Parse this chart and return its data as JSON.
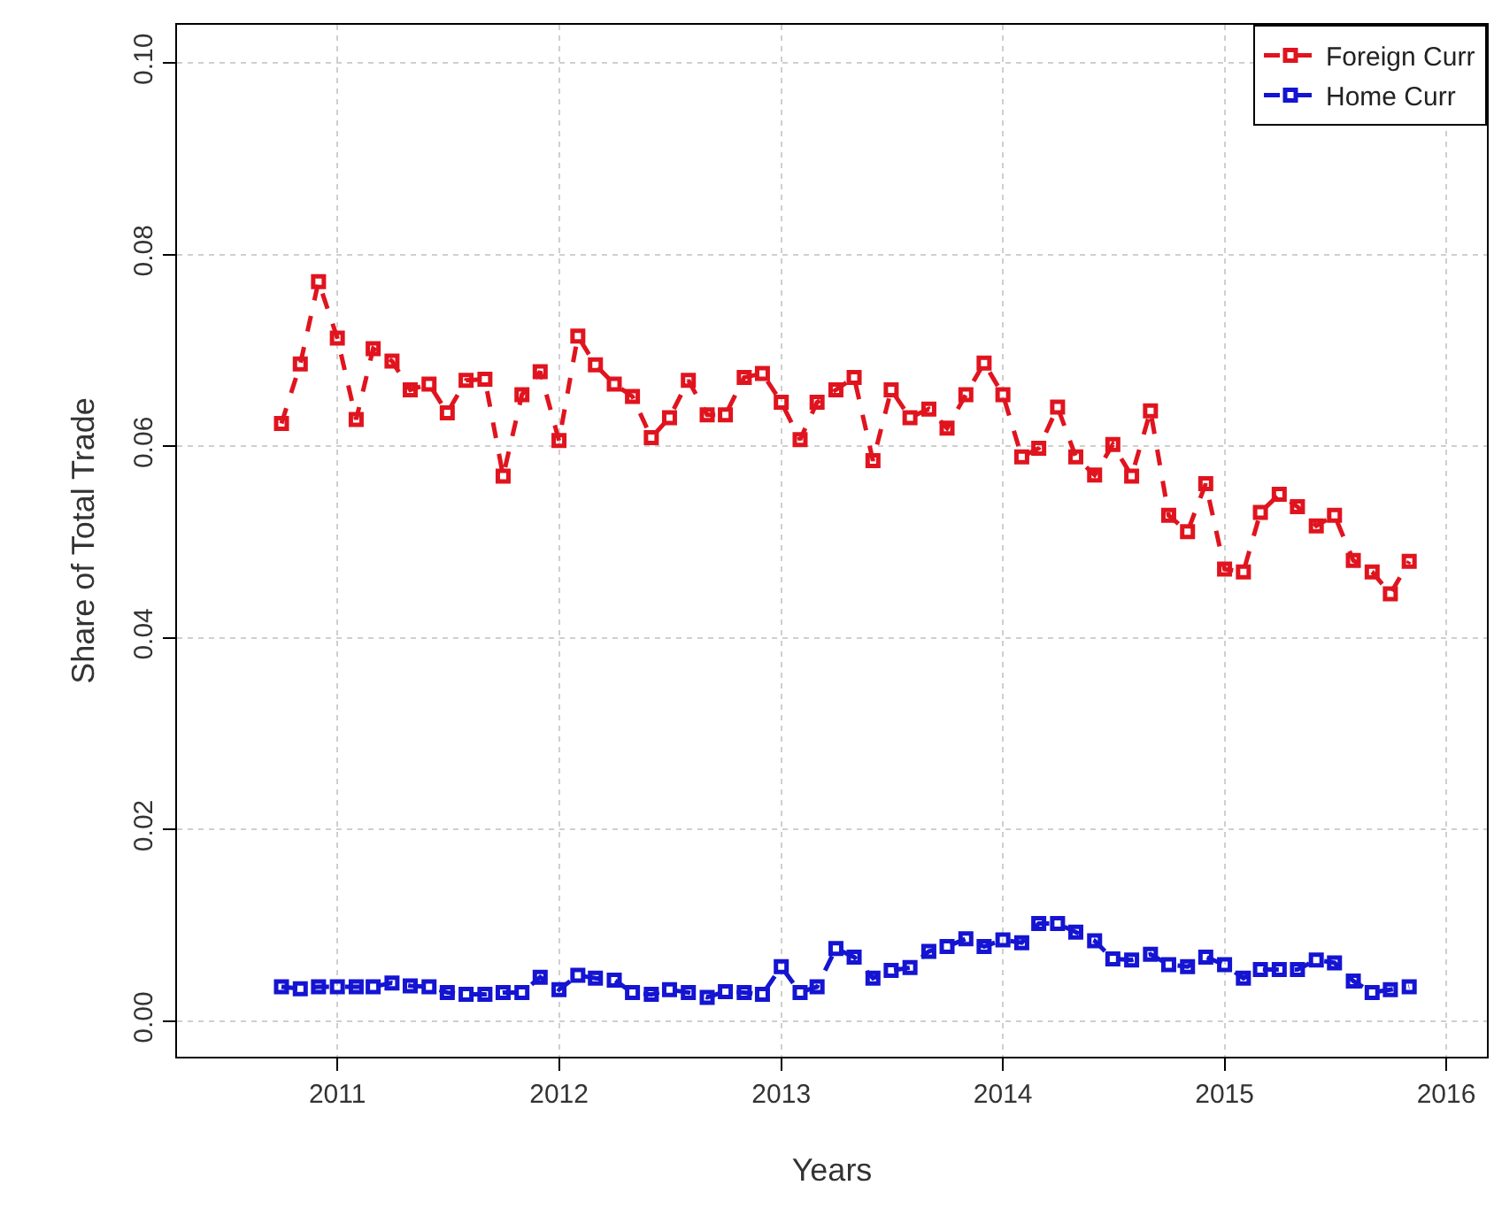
{
  "chart_data": {
    "type": "line",
    "xlabel": "Years",
    "ylabel": "Share of Total Trade",
    "x": [
      "2010-10",
      "2010-11",
      "2010-12",
      "2011-01",
      "2011-02",
      "2011-03",
      "2011-04",
      "2011-05",
      "2011-06",
      "2011-07",
      "2011-08",
      "2011-09",
      "2011-10",
      "2011-11",
      "2011-12",
      "2012-01",
      "2012-02",
      "2012-03",
      "2012-04",
      "2012-05",
      "2012-06",
      "2012-07",
      "2012-08",
      "2012-09",
      "2012-10",
      "2012-11",
      "2012-12",
      "2013-01",
      "2013-02",
      "2013-03",
      "2013-04",
      "2013-05",
      "2013-06",
      "2013-07",
      "2013-08",
      "2013-09",
      "2013-10",
      "2013-11",
      "2013-12",
      "2014-01",
      "2014-02",
      "2014-03",
      "2014-04",
      "2014-05",
      "2014-06",
      "2014-07",
      "2014-08",
      "2014-09",
      "2014-10",
      "2014-11",
      "2014-12",
      "2015-01",
      "2015-02",
      "2015-03",
      "2015-04",
      "2015-05",
      "2015-06",
      "2015-07",
      "2015-08",
      "2015-09",
      "2015-10",
      "2015-11"
    ],
    "series": [
      {
        "name": "Foreign Curr",
        "color": "#e0141e",
        "values": [
          0.0624,
          0.0686,
          0.0772,
          0.0713,
          0.0628,
          0.0702,
          0.0689,
          0.0659,
          0.0665,
          0.0635,
          0.0669,
          0.067,
          0.0569,
          0.0654,
          0.0678,
          0.0606,
          0.0715,
          0.0685,
          0.0665,
          0.0652,
          0.0609,
          0.063,
          0.0669,
          0.0633,
          0.0633,
          0.0672,
          0.0676,
          0.0646,
          0.0607,
          0.0646,
          0.0659,
          0.0672,
          0.0585,
          0.0659,
          0.063,
          0.0639,
          0.0619,
          0.0654,
          0.0687,
          0.0654,
          0.0589,
          0.0598,
          0.0641,
          0.0589,
          0.057,
          0.0602,
          0.0569,
          0.0637,
          0.0528,
          0.0511,
          0.0561,
          0.0472,
          0.0469,
          0.0531,
          0.055,
          0.0537,
          0.0517,
          0.0528,
          0.0481,
          0.0469,
          0.0446,
          0.048
        ]
      },
      {
        "name": "Home Curr",
        "color": "#1414d2",
        "values": [
          0.0036,
          0.0034,
          0.0036,
          0.0036,
          0.0036,
          0.0036,
          0.004,
          0.0037,
          0.0036,
          0.003,
          0.0028,
          0.0028,
          0.003,
          0.003,
          0.0046,
          0.0033,
          0.0048,
          0.0045,
          0.0043,
          0.003,
          0.0028,
          0.0033,
          0.003,
          0.0025,
          0.0031,
          0.003,
          0.0028,
          0.0057,
          0.003,
          0.0036,
          0.0076,
          0.0067,
          0.0045,
          0.0053,
          0.0056,
          0.0073,
          0.0078,
          0.0086,
          0.0078,
          0.0085,
          0.0082,
          0.0102,
          0.0102,
          0.0093,
          0.0084,
          0.0065,
          0.0064,
          0.007,
          0.0059,
          0.0057,
          0.0067,
          0.0059,
          0.0045,
          0.0054,
          0.0054,
          0.0054,
          0.0064,
          0.0061,
          0.0042,
          0.003,
          0.0033,
          0.0036
        ]
      }
    ],
    "xlim": [
      "2010-04-12",
      "2016-03-08"
    ],
    "xticks": [
      {
        "value": "2011-01-01",
        "label": "2011"
      },
      {
        "value": "2012-01-01",
        "label": "2012"
      },
      {
        "value": "2013-01-01",
        "label": "2013"
      },
      {
        "value": "2014-01-01",
        "label": "2014"
      },
      {
        "value": "2015-01-01",
        "label": "2015"
      },
      {
        "value": "2016-01-01",
        "label": "2016"
      }
    ],
    "ylim": [
      -0.0037,
      0.104
    ],
    "yticks": [
      {
        "value": 0,
        "label": "0.00"
      },
      {
        "value": 0.02,
        "label": "0.02"
      },
      {
        "value": 0.04,
        "label": "0.04"
      },
      {
        "value": 0.06,
        "label": "0.06"
      },
      {
        "value": 0.08,
        "label": "0.08"
      },
      {
        "value": 0.1,
        "label": "0.10"
      }
    ],
    "grid": true,
    "legend": "top right",
    "marker": "square",
    "line_style": "dashed"
  }
}
